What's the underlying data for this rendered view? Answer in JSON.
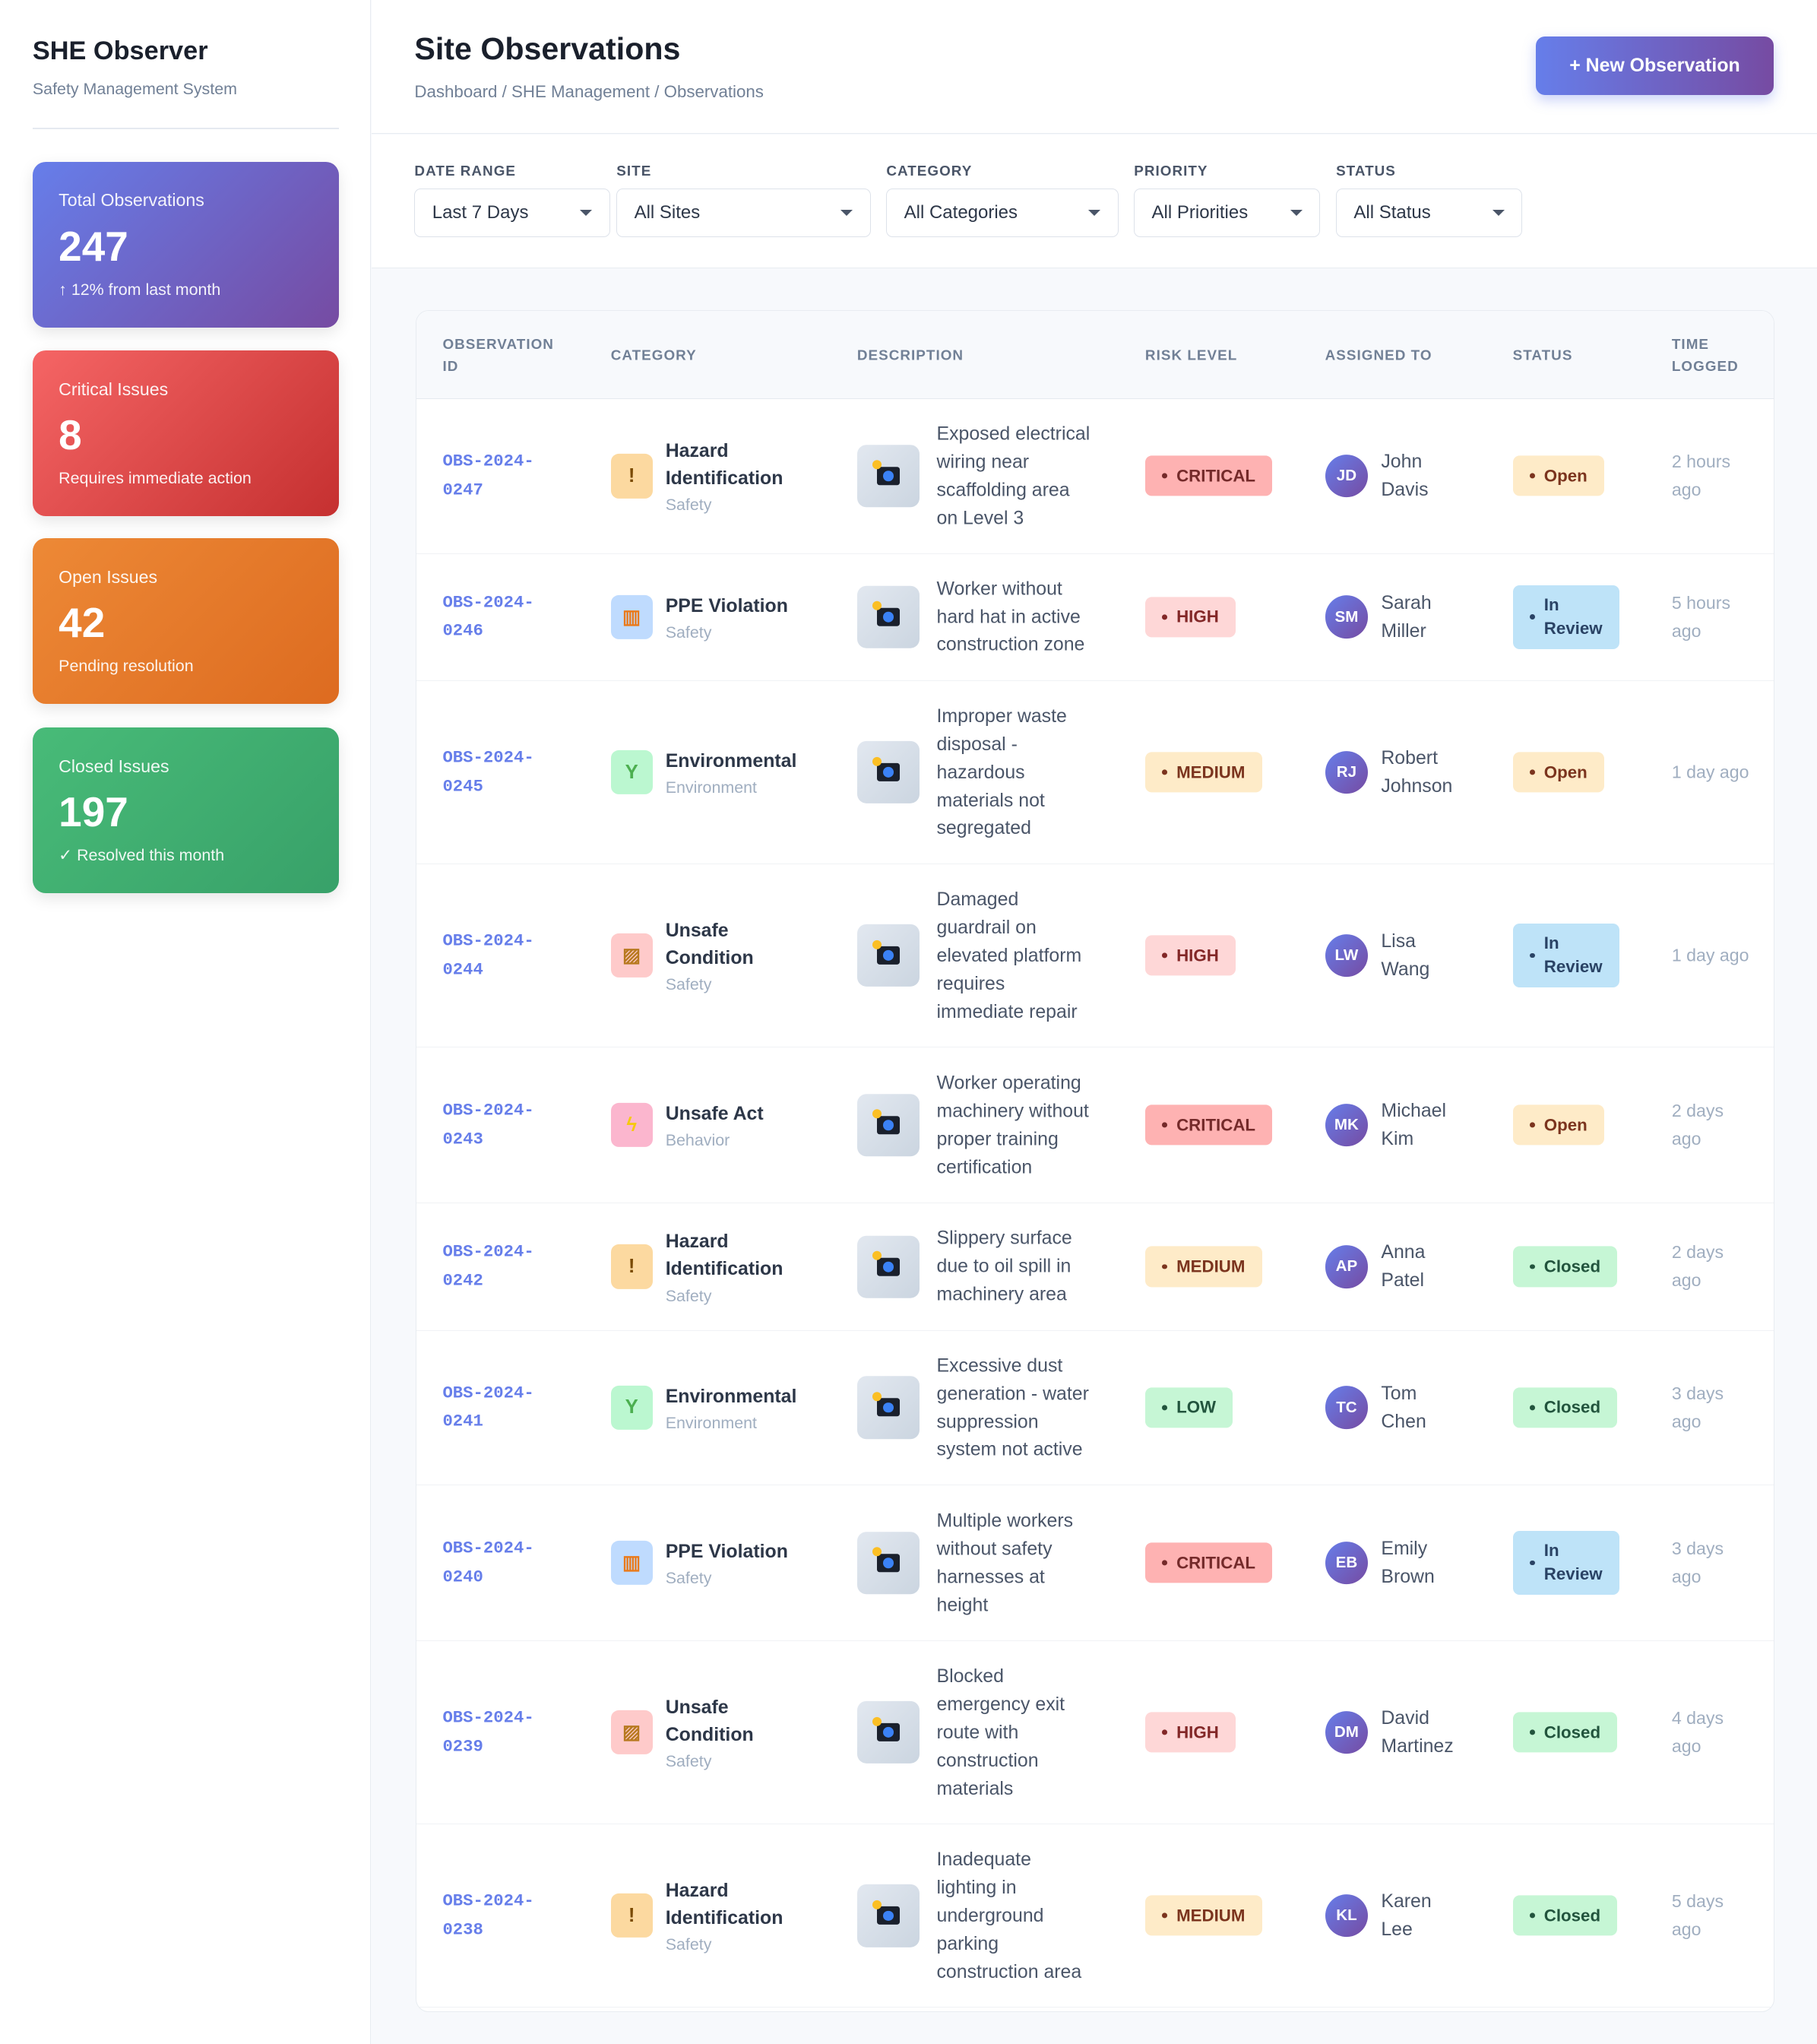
{
  "sidebar": {
    "title": "SHE Observer",
    "subtitle": "Safety Management System",
    "stats": [
      {
        "label": "Total Observations",
        "value": "247",
        "sub": "↑ 12% from last month",
        "gradient": [
          "#667eea",
          "#764ba2"
        ]
      },
      {
        "label": "Critical Issues",
        "value": "8",
        "sub": "Requires immediate action",
        "gradient": [
          "#f56565",
          "#c53030"
        ]
      },
      {
        "label": "Open Issues",
        "value": "42",
        "sub": "Pending resolution",
        "gradient": [
          "#ed8936",
          "#dd6b20"
        ]
      },
      {
        "label": "Closed Issues",
        "value": "197",
        "sub": "✓ Resolved this month",
        "gradient": [
          "#48bb78",
          "#38a169"
        ]
      }
    ]
  },
  "header": {
    "title": "Site Observations",
    "breadcrumb": "Dashboard / SHE Management / Observations",
    "new_button": "+  New Observation"
  },
  "filters": [
    {
      "label": "DATE RANGE",
      "value": "Last 7 Days"
    },
    {
      "label": "SITE",
      "value": "All Sites"
    },
    {
      "label": "CATEGORY",
      "value": "All Categories"
    },
    {
      "label": "PRIORITY",
      "value": "All Priorities"
    },
    {
      "label": "STATUS",
      "value": "All Status"
    }
  ],
  "table": {
    "columns": [
      "OBSERVATION ID",
      "CATEGORY",
      "DESCRIPTION",
      "RISK LEVEL",
      "ASSIGNED TO",
      "STATUS",
      "TIME LOGGED"
    ],
    "rows": [
      {
        "id": "OBS-2024-0247",
        "category": "Hazard Identification",
        "sub": "Safety",
        "icon": "warning-icon",
        "description": "Exposed electrical wiring near scaffolding area on Level 3",
        "risk": "CRITICAL",
        "initials": "JD",
        "assignee": "John Davis",
        "status": "Open",
        "time": "2 hours ago"
      },
      {
        "id": "OBS-2024-0246",
        "category": "PPE Violation",
        "sub": "Safety",
        "icon": "safety-vest-icon",
        "description": "Worker without hard hat in active construction zone",
        "risk": "HIGH",
        "initials": "SM",
        "assignee": "Sarah Miller",
        "status": "In Review",
        "time": "5 hours ago"
      },
      {
        "id": "OBS-2024-0245",
        "category": "Environmental",
        "sub": "Environment",
        "icon": "seedling-icon",
        "description": "Improper waste disposal - hazardous materials not segregated",
        "risk": "MEDIUM",
        "initials": "RJ",
        "assignee": "Robert Johnson",
        "status": "Open",
        "time": "1 day ago"
      },
      {
        "id": "OBS-2024-0244",
        "category": "Unsafe Condition",
        "sub": "Safety",
        "icon": "construction-barrier-icon",
        "description": "Damaged guardrail on elevated platform requires immediate repair",
        "risk": "HIGH",
        "initials": "LW",
        "assignee": "Lisa Wang",
        "status": "In Review",
        "time": "1 day ago"
      },
      {
        "id": "OBS-2024-0243",
        "category": "Unsafe Act",
        "sub": "Behavior",
        "icon": "lightning-icon",
        "description": "Worker operating machinery without proper training certification",
        "risk": "CRITICAL",
        "initials": "MK",
        "assignee": "Michael Kim",
        "status": "Open",
        "time": "2 days ago"
      },
      {
        "id": "OBS-2024-0242",
        "category": "Hazard Identification",
        "sub": "Safety",
        "icon": "warning-icon",
        "description": "Slippery surface due to oil spill in machinery area",
        "risk": "MEDIUM",
        "initials": "AP",
        "assignee": "Anna Patel",
        "status": "Closed",
        "time": "2 days ago"
      },
      {
        "id": "OBS-2024-0241",
        "category": "Environmental",
        "sub": "Environment",
        "icon": "seedling-icon",
        "description": "Excessive dust generation - water suppression system not active",
        "risk": "LOW",
        "initials": "TC",
        "assignee": "Tom Chen",
        "status": "Closed",
        "time": "3 days ago"
      },
      {
        "id": "OBS-2024-0240",
        "category": "PPE Violation",
        "sub": "Safety",
        "icon": "safety-vest-icon",
        "description": "Multiple workers without safety harnesses at height",
        "risk": "CRITICAL",
        "initials": "EB",
        "assignee": "Emily Brown",
        "status": "In Review",
        "time": "3 days ago"
      },
      {
        "id": "OBS-2024-0239",
        "category": "Unsafe Condition",
        "sub": "Safety",
        "icon": "construction-barrier-icon",
        "description": "Blocked emergency exit route with construction materials",
        "risk": "HIGH",
        "initials": "DM",
        "assignee": "David Martinez",
        "status": "Closed",
        "time": "4 days ago"
      },
      {
        "id": "OBS-2024-0238",
        "category": "Hazard Identification",
        "sub": "Safety",
        "icon": "warning-icon",
        "description": "Inadequate lighting in underground parking construction area",
        "risk": "MEDIUM",
        "initials": "KL",
        "assignee": "Karen Lee",
        "status": "Closed",
        "time": "5 days ago"
      }
    ]
  },
  "colors": {
    "accent": "#667eea",
    "risk": {
      "CRITICAL": [
        "#feb2b2",
        "#742a2a"
      ],
      "HIGH": [
        "#fed7d7",
        "#822727"
      ],
      "MEDIUM": [
        "#feebc8",
        "#7b341e"
      ],
      "LOW": [
        "#c6f6d5",
        "#22543d"
      ]
    },
    "status": {
      "Open": [
        "#feebc8",
        "#7b341e"
      ],
      "In Review": [
        "#bee3f8",
        "#2a4365"
      ],
      "Closed": [
        "#c6f6d5",
        "#22543d"
      ]
    }
  }
}
